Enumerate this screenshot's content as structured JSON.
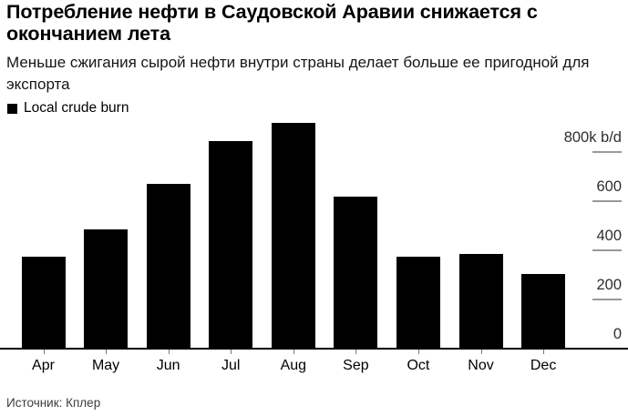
{
  "chart_data": {
    "type": "bar",
    "title": "Потребление нефти в Саудовской Аравии снижается с окончанием лета",
    "subtitle": "Меньше сжигания сырой нефти внутри страны делает больше ее пригодной для экспорта",
    "categories": [
      "Apr",
      "May",
      "Jun",
      "Jul",
      "Aug",
      "Sep",
      "Oct",
      "Nov",
      "Dec"
    ],
    "series": [
      {
        "name": "Local crude burn",
        "values": [
          375,
          485,
          670,
          845,
          920,
          620,
          375,
          385,
          305
        ]
      }
    ],
    "unit": "k b/d",
    "yticks": [
      0,
      200,
      400,
      600,
      800
    ],
    "ytick_labels": [
      "0",
      "200",
      "400",
      "600",
      "800k b/d"
    ],
    "ylim": [
      0,
      937
    ],
    "grid": false,
    "legend_position": "top-left",
    "axis_labels_side": "right",
    "source": "Источник: Кплер"
  },
  "colors": {
    "bar": "#000000",
    "axis_line": "#000000",
    "tick_dash": "#999999",
    "x_tick": "#777777",
    "y_label": "#2e2e2e",
    "x_label": "#000000"
  }
}
